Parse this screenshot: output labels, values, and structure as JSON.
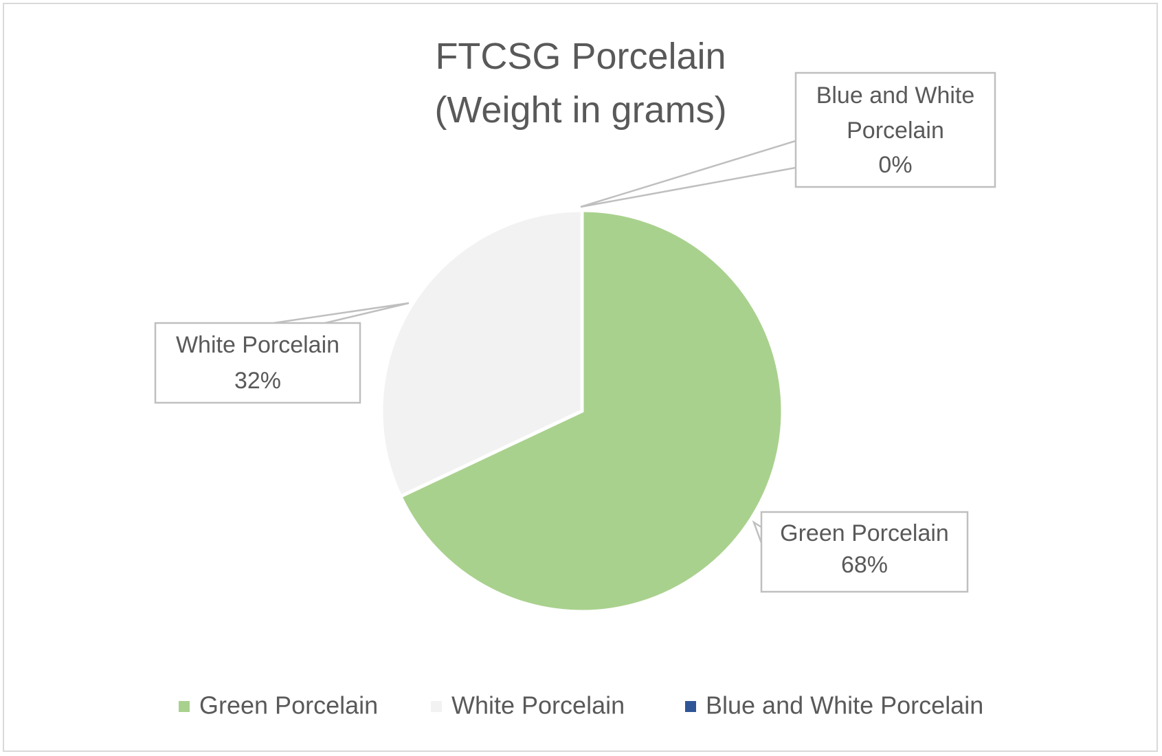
{
  "chart_data": {
    "type": "pie",
    "title_lines": [
      "FTCSG Porcelain",
      "(Weight in grams)"
    ],
    "slices": [
      {
        "name": "Green Porcelain",
        "value": 68,
        "label_lines": [
          "Green Porcelain",
          "68%"
        ],
        "color": "#a9d18e"
      },
      {
        "name": "White Porcelain",
        "value": 32,
        "label_lines": [
          "White Porcelain",
          "32%"
        ],
        "color": "#f2f2f2"
      },
      {
        "name": "Blue and White Porcelain",
        "value": 0,
        "label_lines": [
          "Blue and White",
          "Porcelain",
          "0%"
        ],
        "color": "#2f5597"
      }
    ],
    "legend": {
      "position": "bottom",
      "items": [
        "Green Porcelain",
        "White Porcelain",
        "Blue and White Porcelain"
      ]
    }
  }
}
